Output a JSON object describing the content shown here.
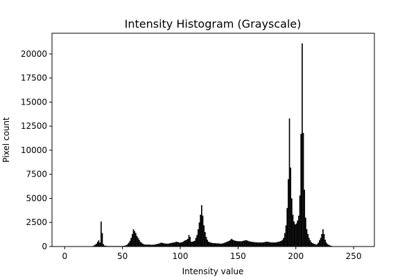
{
  "chart_data": {
    "type": "bar",
    "title": "Intensity Histogram (Grayscale)",
    "xlabel": "Intensity value",
    "ylabel": "Pixel count",
    "xlim": [
      -11,
      268
    ],
    "ylim": [
      0,
      22150
    ],
    "xticks": [
      0,
      50,
      100,
      150,
      200,
      250
    ],
    "yticks": [
      0,
      2500,
      5000,
      7500,
      10000,
      12500,
      15000,
      17500,
      20000
    ],
    "grid": false,
    "legend": "none",
    "bar_color": "#000000",
    "bin_width": 1,
    "bins_start": 0,
    "values": [
      0,
      0,
      0,
      0,
      0,
      0,
      0,
      0,
      0,
      0,
      0,
      0,
      0,
      0,
      0,
      0,
      0,
      0,
      0,
      0,
      0,
      0,
      10,
      30,
      60,
      120,
      200,
      300,
      500,
      650,
      400,
      2600,
      1400,
      250,
      100,
      80,
      60,
      50,
      50,
      50,
      50,
      50,
      50,
      50,
      50,
      50,
      50,
      50,
      50,
      50,
      60,
      80,
      100,
      150,
      250,
      400,
      600,
      900,
      1300,
      1800,
      1600,
      1400,
      1100,
      900,
      700,
      500,
      400,
      300,
      250,
      200,
      200,
      200,
      200,
      200,
      180,
      180,
      180,
      200,
      220,
      250,
      280,
      300,
      350,
      400,
      380,
      350,
      320,
      300,
      300,
      300,
      320,
      350,
      380,
      400,
      420,
      450,
      500,
      480,
      450,
      400,
      420,
      450,
      500,
      600,
      650,
      700,
      800,
      1200,
      1000,
      500,
      500,
      550,
      600,
      900,
      1200,
      1800,
      2500,
      3300,
      4300,
      3200,
      2200,
      1500,
      1000,
      700,
      500,
      450,
      400,
      380,
      350,
      350,
      350,
      330,
      320,
      320,
      300,
      300,
      320,
      350,
      400,
      450,
      500,
      550,
      600,
      700,
      800,
      700,
      650,
      600,
      580,
      560,
      550,
      550,
      550,
      550,
      600,
      620,
      650,
      650,
      600,
      550,
      520,
      500,
      480,
      460,
      450,
      440,
      430,
      420,
      420,
      420,
      420,
      420,
      450,
      480,
      500,
      500,
      480,
      450,
      430,
      420,
      420,
      420,
      430,
      450,
      480,
      500,
      550,
      600,
      700,
      900,
      1400,
      2200,
      4000,
      7000,
      13300,
      8200,
      5000,
      3300,
      2600,
      2300,
      2400,
      2700,
      3200,
      5300,
      11700,
      21100,
      11800,
      5900,
      3000,
      1800,
      1300,
      900,
      650,
      450,
      350,
      300,
      250,
      200,
      250,
      400,
      650,
      900,
      1300,
      1800,
      1300,
      700,
      400,
      250,
      180,
      120,
      80,
      50,
      30,
      20,
      10,
      5,
      0,
      0,
      0,
      0,
      0,
      0,
      0,
      0,
      0,
      0,
      0,
      0,
      0,
      0,
      0,
      0,
      0,
      0,
      0,
      0
    ]
  }
}
